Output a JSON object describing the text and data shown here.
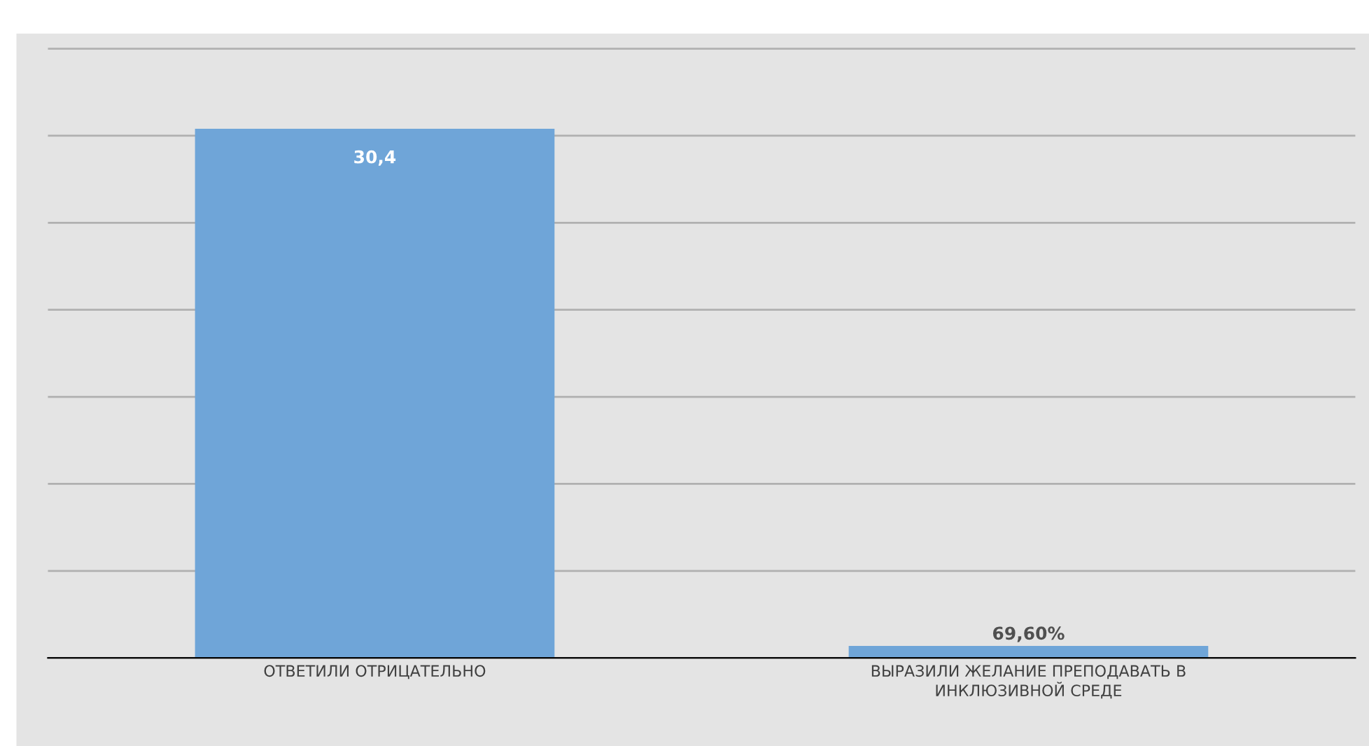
{
  "chart_data": {
    "type": "bar",
    "categories": [
      "ОТВЕТИЛИ ОТРИЦАТЕЛЬНО",
      "ВЫРАЗИЛИ ЖЕЛАНИЕ ПРЕПОДАВАТЬ В\nИНКЛЮЗИВНОЙ СРЕДЕ"
    ],
    "values": [
      30.4,
      0.696
    ],
    "value_labels": [
      "30,4",
      "69,60%"
    ],
    "color": "#6fa5d8",
    "grid": "y"
  }
}
